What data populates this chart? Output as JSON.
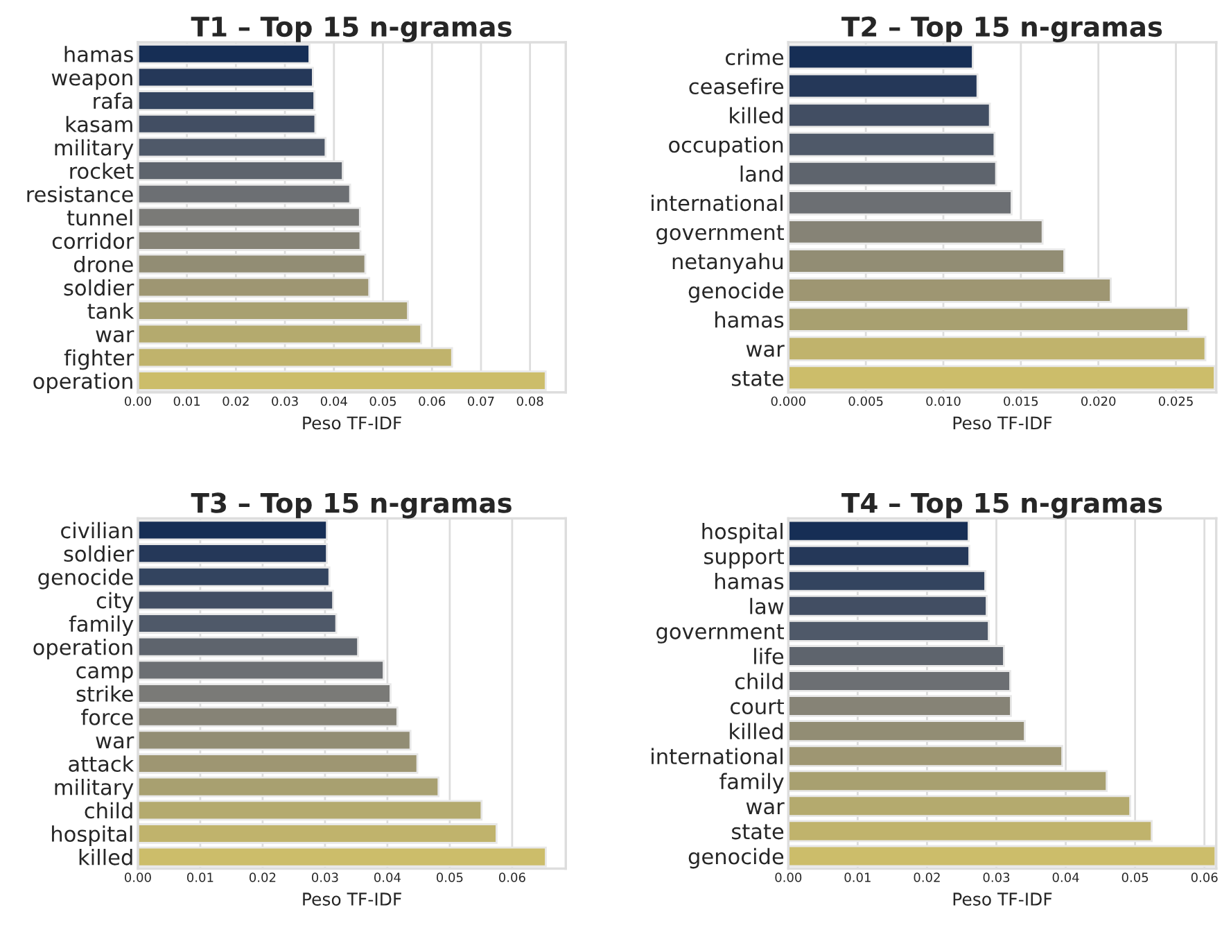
{
  "chart_data": [
    {
      "type": "bar",
      "orientation": "horizontal",
      "title": "T1 – Top 15 n-gramas",
      "xlabel": "Peso TF-IDF",
      "grid": "x",
      "categories": [
        "hamas",
        "weapon",
        "rafa",
        "kasam",
        "military",
        "rocket",
        "resistance",
        "tunnel",
        "corridor",
        "drone",
        "soldier",
        "tank",
        "war",
        "fighter",
        "operation"
      ],
      "values": [
        0.035,
        0.0357,
        0.036,
        0.0362,
        0.0383,
        0.0418,
        0.0433,
        0.0453,
        0.0454,
        0.0464,
        0.0472,
        0.0551,
        0.0578,
        0.0641,
        0.0832
      ],
      "colors": [
        "#0c2b5f",
        "#1c3662",
        "#2c4266",
        "#3c4d69",
        "#4b586d",
        "#5b6370",
        "#6b6f74",
        "#7b7a77",
        "#898573",
        "#97906f",
        "#a59b6b",
        "#b2a766",
        "#c0b262",
        "#cebd5e",
        "#dcc85a"
      ],
      "xlim": [
        0,
        0.0873
      ],
      "xticks": [
        {
          "value": 0,
          "label": "0.00"
        },
        {
          "value": 0.01,
          "label": "0.01"
        },
        {
          "value": 0.02,
          "label": "0.02"
        },
        {
          "value": 0.03,
          "label": "0.03"
        },
        {
          "value": 0.04,
          "label": "0.04"
        },
        {
          "value": 0.05,
          "label": "0.05"
        },
        {
          "value": 0.06,
          "label": "0.06"
        },
        {
          "value": 0.07,
          "label": "0.07"
        },
        {
          "value": 0.08,
          "label": "0.08"
        }
      ]
    },
    {
      "type": "bar",
      "orientation": "horizontal",
      "title": "T2 – Top 15 n-gramas",
      "xlabel": "Peso TF-IDF",
      "grid": "x",
      "categories": [
        "crime",
        "ceasefire",
        "killed",
        "occupation",
        "land",
        "international",
        "government",
        "netanyahu",
        "genocide",
        "hamas",
        "war",
        "state"
      ],
      "values": [
        0.0119,
        0.0122,
        0.013,
        0.0133,
        0.0134,
        0.0144,
        0.0164,
        0.0178,
        0.0208,
        0.0258,
        0.0269,
        0.0275
      ],
      "colors": [
        "#0c2b5f",
        "#1c3662",
        "#3c4d69",
        "#4b586d",
        "#5b6370",
        "#6b6f74",
        "#898573",
        "#97906f",
        "#a59b6b",
        "#b2a766",
        "#cebd5e",
        "#dcc85a"
      ],
      "xlim": [
        0,
        0.0276
      ],
      "xticks": [
        {
          "value": 0,
          "label": "0.000"
        },
        {
          "value": 0.005,
          "label": "0.005"
        },
        {
          "value": 0.01,
          "label": "0.010"
        },
        {
          "value": 0.015,
          "label": "0.015"
        },
        {
          "value": 0.02,
          "label": "0.020"
        },
        {
          "value": 0.025,
          "label": "0.025"
        }
      ]
    },
    {
      "type": "bar",
      "orientation": "horizontal",
      "title": "T3 – Top 15 n-gramas",
      "xlabel": "Peso TF-IDF",
      "grid": "x",
      "categories": [
        "civilian",
        "soldier",
        "genocide",
        "city",
        "family",
        "operation",
        "camp",
        "strike",
        "force",
        "war",
        "attack",
        "military",
        "child",
        "hospital",
        "killed"
      ],
      "values": [
        0.0303,
        0.0303,
        0.0307,
        0.0313,
        0.0318,
        0.0353,
        0.0394,
        0.0405,
        0.0416,
        0.0437,
        0.0448,
        0.0482,
        0.0551,
        0.0575,
        0.0654
      ],
      "colors": [
        "#0c2b5f",
        "#1c3662",
        "#2c4266",
        "#3c4d69",
        "#4b586d",
        "#5b6370",
        "#6b6f74",
        "#7b7a77",
        "#898573",
        "#97906f",
        "#a59b6b",
        "#b2a766",
        "#c0b262",
        "#cebd5e",
        "#dcc85a"
      ],
      "xlim": [
        0,
        0.0686
      ],
      "xticks": [
        {
          "value": 0,
          "label": "0.00"
        },
        {
          "value": 0.01,
          "label": "0.01"
        },
        {
          "value": 0.02,
          "label": "0.02"
        },
        {
          "value": 0.03,
          "label": "0.03"
        },
        {
          "value": 0.04,
          "label": "0.04"
        },
        {
          "value": 0.05,
          "label": "0.05"
        },
        {
          "value": 0.06,
          "label": "0.06"
        }
      ]
    },
    {
      "type": "bar",
      "orientation": "horizontal",
      "title": "T4 – Top 15 n-gramas",
      "xlabel": "Peso TF-IDF",
      "grid": "x",
      "categories": [
        "hospital",
        "support",
        "hamas",
        "law",
        "government",
        "life",
        "child",
        "court",
        "killed",
        "international",
        "family",
        "war",
        "state",
        "genocide"
      ],
      "values": [
        0.026,
        0.0261,
        0.0284,
        0.0286,
        0.0289,
        0.0311,
        0.032,
        0.0321,
        0.0341,
        0.0395,
        0.0459,
        0.0493,
        0.0524,
        0.0616
      ],
      "colors": [
        "#0c2b5f",
        "#1c3662",
        "#2c4266",
        "#3c4d69",
        "#4b586d",
        "#5b6370",
        "#6b6f74",
        "#898573",
        "#97906f",
        "#a59b6b",
        "#b2a766",
        "#c0b262",
        "#cebd5e",
        "#dcc85a"
      ],
      "xlim": [
        0,
        0.0617
      ],
      "xticks": [
        {
          "value": 0,
          "label": "0.00"
        },
        {
          "value": 0.01,
          "label": "0.01"
        },
        {
          "value": 0.02,
          "label": "0.02"
        },
        {
          "value": 0.03,
          "label": "0.03"
        },
        {
          "value": 0.04,
          "label": "0.04"
        },
        {
          "value": 0.05,
          "label": "0.05"
        },
        {
          "value": 0.06,
          "label": "0.06"
        }
      ]
    }
  ]
}
